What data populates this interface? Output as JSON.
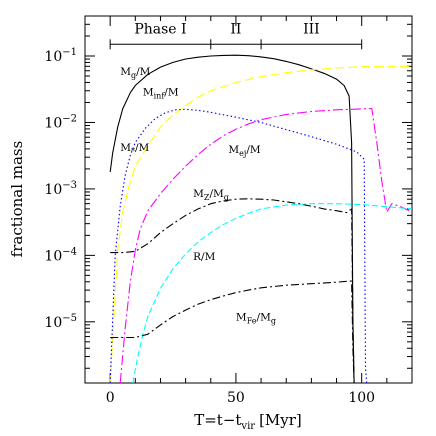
{
  "chart_data": {
    "type": "line",
    "xlabel": "T=t−t",
    "xlabel_sub": "vir",
    "xlabel_unit": "[Myr]",
    "ylabel": "fractional mass",
    "xlim": [
      -10,
      120
    ],
    "ylim": [
      1.2e-06,
      0.4
    ],
    "yscale": "log",
    "x_ticks": [
      {
        "value": 0,
        "label": "0"
      },
      {
        "value": 50,
        "label": "50"
      },
      {
        "value": 100,
        "label": "100"
      }
    ],
    "y_ticks": [
      {
        "value": 0.1,
        "base": "10",
        "exp": "−1"
      },
      {
        "value": 0.01,
        "base": "10",
        "exp": "−2"
      },
      {
        "value": 0.001,
        "base": "10",
        "exp": "−3"
      },
      {
        "value": 0.0001,
        "base": "10",
        "exp": "−4"
      },
      {
        "value": 1e-05,
        "base": "10",
        "exp": "−5"
      }
    ],
    "phases": {
      "y_value": 0.15,
      "boundaries": [
        0,
        40,
        60,
        100
      ],
      "labels": [
        {
          "text": "Phase I",
          "x_center": 20
        },
        {
          "text": "II",
          "x_center": 50
        },
        {
          "text": "III",
          "x_center": 80
        }
      ]
    },
    "series": [
      {
        "key": "Mg",
        "color": "#000000",
        "dash": "",
        "points": [
          [
            0,
            0.0018
          ],
          [
            1,
            0.0035
          ],
          [
            3,
            0.0085
          ],
          [
            5,
            0.016
          ],
          [
            8,
            0.028
          ],
          [
            10,
            0.036
          ],
          [
            15,
            0.053
          ],
          [
            20,
            0.068
          ],
          [
            25,
            0.08
          ],
          [
            30,
            0.09
          ],
          [
            35,
            0.096
          ],
          [
            40,
            0.1
          ],
          [
            45,
            0.102
          ],
          [
            50,
            0.103
          ],
          [
            55,
            0.101
          ],
          [
            60,
            0.097
          ],
          [
            65,
            0.091
          ],
          [
            70,
            0.083
          ],
          [
            75,
            0.074
          ],
          [
            80,
            0.064
          ],
          [
            85,
            0.055
          ],
          [
            90,
            0.045
          ],
          [
            93,
            0.036
          ],
          [
            95,
            0.025
          ],
          [
            96,
            0.005
          ],
          [
            96.5,
            1e-05
          ],
          [
            97,
            1.2e-06
          ]
        ]
      },
      {
        "key": "Minf",
        "color": "#ffff00",
        "dash": "9,4",
        "points": [
          [
            0,
            1.2e-06
          ],
          [
            3,
            0.00012
          ],
          [
            5,
            0.00045
          ],
          [
            8,
            0.0013
          ],
          [
            10,
            0.0022
          ],
          [
            15,
            0.0045
          ],
          [
            20,
            0.0085
          ],
          [
            25,
            0.013
          ],
          [
            30,
            0.018
          ],
          [
            35,
            0.024
          ],
          [
            40,
            0.03
          ],
          [
            50,
            0.04
          ],
          [
            60,
            0.049
          ],
          [
            70,
            0.056
          ],
          [
            80,
            0.062
          ],
          [
            90,
            0.066
          ],
          [
            100,
            0.069
          ],
          [
            110,
            0.07
          ],
          [
            120,
            0.069
          ]
        ]
      },
      {
        "key": "Mstar",
        "color": "#0000ff",
        "dash": "1.5,2.5",
        "points": [
          [
            0,
            1.2e-06
          ],
          [
            2,
            0.0001
          ],
          [
            4,
            0.00055
          ],
          [
            6,
            0.0016
          ],
          [
            8,
            0.0032
          ],
          [
            10,
            0.005
          ],
          [
            14,
            0.0082
          ],
          [
            18,
            0.0115
          ],
          [
            22,
            0.014
          ],
          [
            26,
            0.0155
          ],
          [
            30,
            0.0158
          ],
          [
            35,
            0.0152
          ],
          [
            40,
            0.0142
          ],
          [
            50,
            0.012
          ],
          [
            60,
            0.01
          ],
          [
            70,
            0.0078
          ],
          [
            80,
            0.0061
          ],
          [
            90,
            0.0047
          ],
          [
            98,
            0.0036
          ],
          [
            101,
            0.0028
          ],
          [
            101.5,
            2e-06
          ],
          [
            102,
            1.2e-06
          ]
        ]
      },
      {
        "key": "Mej",
        "color": "#ff00ff",
        "dash": "10,3,2,3",
        "points": [
          [
            4,
            1.2e-06
          ],
          [
            6,
            8e-06
          ],
          [
            8,
            4e-05
          ],
          [
            10,
            0.00012
          ],
          [
            12,
            0.00025
          ],
          [
            15,
            0.00047
          ],
          [
            20,
            0.00085
          ],
          [
            25,
            0.0014
          ],
          [
            30,
            0.0022
          ],
          [
            35,
            0.0033
          ],
          [
            40,
            0.0047
          ],
          [
            45,
            0.0063
          ],
          [
            50,
            0.0079
          ],
          [
            55,
            0.0095
          ],
          [
            60,
            0.011
          ],
          [
            70,
            0.0132
          ],
          [
            80,
            0.0146
          ],
          [
            90,
            0.0155
          ],
          [
            100,
            0.016
          ],
          [
            104,
            0.0162
          ],
          [
            106,
            0.005
          ],
          [
            108,
            0.0013
          ],
          [
            110,
            0.00045
          ],
          [
            112,
            0.0006
          ],
          [
            116,
            0.00053
          ],
          [
            120,
            0.00045
          ]
        ]
      },
      {
        "key": "MZ",
        "color": "#000000",
        "dash": "8,3,2,3",
        "points": [
          [
            0,
            0.00011
          ],
          [
            5,
            0.00011
          ],
          [
            10,
            0.000115
          ],
          [
            15,
            0.00015
          ],
          [
            20,
            0.00022
          ],
          [
            25,
            0.0003
          ],
          [
            30,
            0.0004
          ],
          [
            35,
            0.0005
          ],
          [
            40,
            0.0006
          ],
          [
            45,
            0.00066
          ],
          [
            50,
            0.0007
          ],
          [
            55,
            0.00071
          ],
          [
            60,
            0.0007
          ],
          [
            65,
            0.00068
          ],
          [
            70,
            0.00064
          ],
          [
            75,
            0.0006
          ],
          [
            80,
            0.00055
          ],
          [
            85,
            0.0005
          ],
          [
            90,
            0.00047
          ],
          [
            94,
            0.00044
          ],
          [
            95,
            0.00047
          ],
          [
            96,
            0.0005
          ],
          [
            96.5,
            1e-05
          ],
          [
            97,
            1.2e-06
          ]
        ]
      },
      {
        "key": "R",
        "color": "#00ffff",
        "dash": "6,3",
        "points": [
          [
            9,
            1.2e-06
          ],
          [
            11,
            3e-06
          ],
          [
            13,
            6.5e-06
          ],
          [
            15,
            1.2e-05
          ],
          [
            20,
            3.2e-05
          ],
          [
            25,
            6.3e-05
          ],
          [
            30,
            0.000105
          ],
          [
            35,
            0.00016
          ],
          [
            40,
            0.00022
          ],
          [
            45,
            0.00029
          ],
          [
            50,
            0.00036
          ],
          [
            55,
            0.00043
          ],
          [
            60,
            0.0005
          ],
          [
            70,
            0.00057
          ],
          [
            80,
            0.0006
          ],
          [
            90,
            0.0006
          ],
          [
            100,
            0.00058
          ],
          [
            110,
            0.00054
          ],
          [
            120,
            0.0005
          ]
        ]
      },
      {
        "key": "MFe",
        "color": "#000000",
        "dash": "8,3,2,3",
        "points": [
          [
            0,
            5.8e-06
          ],
          [
            5,
            5.8e-06
          ],
          [
            10,
            5.8e-06
          ],
          [
            15,
            6.5e-06
          ],
          [
            20,
            9e-06
          ],
          [
            25,
            1.2e-05
          ],
          [
            30,
            1.5e-05
          ],
          [
            35,
            1.85e-05
          ],
          [
            40,
            2.15e-05
          ],
          [
            45,
            2.45e-05
          ],
          [
            50,
            2.75e-05
          ],
          [
            55,
            3e-05
          ],
          [
            60,
            3.25e-05
          ],
          [
            70,
            3.55e-05
          ],
          [
            80,
            3.75e-05
          ],
          [
            90,
            3.95e-05
          ],
          [
            95,
            4.1e-05
          ],
          [
            96,
            4.1e-05
          ],
          [
            96.5,
            4e-06
          ],
          [
            97,
            1.2e-06
          ]
        ]
      }
    ],
    "annotations": [
      {
        "main": "M",
        "sub": "g",
        "tail": "/M",
        "x": 4,
        "y": 0.052
      },
      {
        "main": "M",
        "sub": "inf",
        "tail": "/M",
        "x": 13,
        "y": 0.0255
      },
      {
        "main": "M",
        "sub": "*",
        "tail": "/M",
        "x": 4,
        "y": 0.0037
      },
      {
        "main": "M",
        "sub": "ej",
        "tail": "/M",
        "x": 47,
        "y": 0.0035
      },
      {
        "main": "M",
        "sub": "Z",
        "tail": "/M",
        "sub2": "g",
        "x": 33,
        "y": 0.00075
      },
      {
        "main": "R/M",
        "sub": "",
        "tail": "",
        "x": 33,
        "y": 8.5e-05
      },
      {
        "main": "M",
        "sub": "Fe",
        "tail": "/M",
        "sub2": "g",
        "x": 50,
        "y": 1.05e-05
      }
    ]
  }
}
